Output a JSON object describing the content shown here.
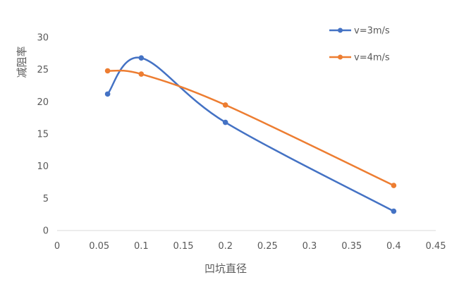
{
  "chart_data": {
    "type": "line",
    "smooth": true,
    "xlabel": "凹坑直径",
    "ylabel": "减阻率",
    "xlim": [
      0,
      0.45
    ],
    "ylim": [
      0,
      30
    ],
    "xticks": [
      0,
      0.05,
      0.1,
      0.15,
      0.2,
      0.25,
      0.3,
      0.35,
      0.4,
      0.45
    ],
    "yticks": [
      0,
      5,
      10,
      15,
      20,
      25,
      30
    ],
    "xtick_labels": [
      "0",
      "0.05",
      "0.1",
      "0.15",
      "0.2",
      "0.25",
      "0.3",
      "0.35",
      "0.4",
      "0.45"
    ],
    "ytick_labels": [
      "0",
      "5",
      "10",
      "15",
      "20",
      "25",
      "30"
    ],
    "grid": false,
    "legend_position": "top-right",
    "series": [
      {
        "name": "v=3m/s",
        "color": "#4472C4",
        "x": [
          0.06,
          0.1,
          0.2,
          0.4
        ],
        "y": [
          21.2,
          26.8,
          16.8,
          3.0
        ]
      },
      {
        "name": "v=4m/s",
        "color": "#ED7D31",
        "x": [
          0.06,
          0.1,
          0.2,
          0.4
        ],
        "y": [
          24.8,
          24.3,
          19.5,
          7.0
        ]
      }
    ]
  }
}
